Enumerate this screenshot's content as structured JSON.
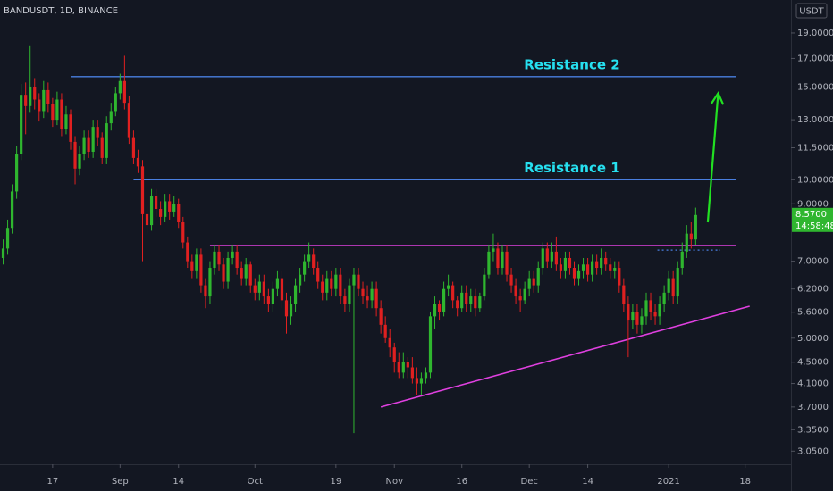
{
  "chart_data": {
    "type": "candlestick",
    "title": "BANDUSDT, 1D, BINANCE",
    "currency": "USDT",
    "countdown": "14:58:48",
    "last_price": {
      "value": 8.57,
      "label": "8.5700"
    },
    "log_scale": true,
    "grid": false,
    "up_color": "#2fb62f",
    "down_color": "#e02020",
    "xlim": [
      -11.7,
      164.2
    ],
    "ylim": [
      2.88,
      21.95
    ],
    "xticks": [
      {
        "value": 0,
        "label": "17"
      },
      {
        "value": 15,
        "label": "Sep"
      },
      {
        "value": 28,
        "label": "14"
      },
      {
        "value": 45,
        "label": "Oct"
      },
      {
        "value": 63,
        "label": "19"
      },
      {
        "value": 76,
        "label": "Nov"
      },
      {
        "value": 91,
        "label": "16"
      },
      {
        "value": 106,
        "label": "Dec"
      },
      {
        "value": 119,
        "label": "14"
      },
      {
        "value": 137,
        "label": "2021"
      },
      {
        "value": 154,
        "label": "18"
      }
    ],
    "yticks": [
      {
        "value": 19,
        "label": "19.0000"
      },
      {
        "value": 17,
        "label": "17.0000"
      },
      {
        "value": 15,
        "label": "15.0000"
      },
      {
        "value": 13,
        "label": "13.0000"
      },
      {
        "value": 11.5,
        "label": "11.5000"
      },
      {
        "value": 10,
        "label": "10.0000"
      },
      {
        "value": 9,
        "label": "9.0000"
      },
      {
        "value": 7,
        "label": "7.0000"
      },
      {
        "value": 6.2,
        "label": "6.2000"
      },
      {
        "value": 5.6,
        "label": "5.6000"
      },
      {
        "value": 5,
        "label": "5.0000"
      },
      {
        "value": 4.5,
        "label": "4.5000"
      },
      {
        "value": 4.1,
        "label": "4.1000"
      },
      {
        "value": 3.7,
        "label": "3.7000"
      },
      {
        "value": 3.35,
        "label": "3.3500"
      },
      {
        "value": 3.05,
        "label": "3.0500"
      }
    ],
    "x": [
      -11,
      -10,
      -9,
      -8,
      -7,
      -6,
      -5,
      -4,
      -3,
      -2,
      -1,
      0,
      1,
      2,
      3,
      4,
      5,
      6,
      7,
      8,
      9,
      10,
      11,
      12,
      13,
      14,
      15,
      16,
      17,
      18,
      19,
      20,
      21,
      22,
      23,
      24,
      25,
      26,
      27,
      28,
      29,
      30,
      31,
      32,
      33,
      34,
      35,
      36,
      37,
      38,
      39,
      40,
      41,
      42,
      43,
      44,
      45,
      46,
      47,
      48,
      49,
      50,
      51,
      52,
      53,
      54,
      55,
      56,
      57,
      58,
      59,
      60,
      61,
      62,
      63,
      64,
      65,
      66,
      67,
      68,
      69,
      70,
      71,
      72,
      73,
      74,
      75,
      76,
      77,
      78,
      79,
      80,
      81,
      82,
      83,
      84,
      85,
      86,
      87,
      88,
      89,
      90,
      91,
      92,
      93,
      94,
      95,
      96,
      97,
      98,
      99,
      100,
      101,
      102,
      103,
      104,
      105,
      106,
      107,
      108,
      109,
      110,
      111,
      112,
      113,
      114,
      115,
      116,
      117,
      118,
      119,
      120,
      121,
      122,
      123,
      124,
      125,
      126,
      127,
      128,
      129,
      130,
      131,
      132,
      133,
      134,
      135,
      136,
      137,
      138,
      139,
      140,
      141,
      142,
      143
    ],
    "open": [
      7.1,
      7.4,
      8.1,
      9.5,
      11.2,
      14.5,
      13.8,
      15.0,
      14.2,
      13.5,
      14.8,
      13.9,
      13.0,
      14.2,
      12.5,
      13.3,
      11.8,
      10.5,
      11.2,
      12.0,
      11.3,
      12.6,
      12.0,
      11.0,
      12.8,
      13.5,
      14.6,
      15.4,
      14.0,
      12.0,
      11.0,
      10.6,
      8.6,
      8.2,
      9.3,
      8.8,
      8.5,
      9.1,
      8.7,
      9.0,
      8.3,
      7.6,
      7.0,
      6.7,
      7.2,
      6.3,
      6.0,
      6.8,
      7.3,
      6.9,
      6.4,
      7.1,
      7.3,
      6.8,
      6.5,
      6.9,
      6.3,
      6.1,
      6.4,
      6.0,
      5.8,
      6.2,
      6.5,
      5.9,
      5.5,
      5.8,
      6.3,
      6.6,
      7.0,
      7.2,
      6.8,
      6.4,
      6.1,
      6.5,
      6.2,
      6.6,
      6.0,
      5.8,
      6.3,
      6.6,
      6.2,
      6.0,
      5.9,
      6.2,
      5.7,
      5.3,
      5.0,
      4.8,
      4.5,
      4.3,
      4.5,
      4.4,
      4.2,
      4.1,
      4.2,
      4.3,
      5.5,
      5.8,
      5.6,
      6.2,
      6.3,
      5.9,
      5.7,
      6.1,
      5.8,
      6.0,
      5.7,
      6.0,
      6.6,
      7.3,
      7.4,
      6.8,
      7.3,
      6.6,
      6.3,
      6.0,
      5.9,
      6.2,
      6.5,
      6.3,
      6.8,
      7.4,
      7.0,
      7.3,
      6.9,
      6.7,
      7.1,
      6.8,
      6.5,
      6.7,
      6.9,
      6.6,
      7.0,
      6.8,
      7.1,
      6.9,
      6.7,
      6.8,
      6.3,
      5.8,
      5.4,
      5.6,
      5.3,
      5.5,
      5.9,
      5.6,
      5.5,
      5.8,
      6.1,
      6.5,
      6.0,
      6.8,
      7.3,
      7.9,
      7.7
    ],
    "high": [
      7.7,
      8.4,
      9.8,
      11.6,
      15.2,
      15.3,
      18.0,
      15.6,
      14.6,
      15.4,
      15.3,
      14.3,
      14.7,
      14.6,
      13.8,
      13.6,
      12.1,
      11.6,
      12.4,
      12.4,
      13.0,
      13.0,
      12.3,
      13.2,
      14.0,
      15.0,
      15.9,
      17.2,
      14.4,
      12.4,
      11.4,
      10.9,
      8.9,
      9.6,
      9.6,
      9.1,
      9.4,
      9.4,
      9.3,
      9.2,
      8.5,
      7.8,
      7.2,
      7.4,
      7.4,
      6.5,
      7.0,
      7.5,
      7.5,
      7.1,
      7.3,
      7.5,
      7.5,
      7.0,
      7.1,
      7.0,
      6.5,
      6.6,
      6.6,
      6.2,
      6.4,
      6.7,
      6.7,
      6.1,
      6.0,
      6.5,
      6.8,
      7.2,
      7.6,
      7.4,
      7.0,
      6.6,
      6.7,
      6.7,
      6.8,
      6.8,
      6.2,
      6.5,
      6.8,
      6.8,
      6.4,
      6.3,
      6.4,
      6.4,
      5.9,
      5.5,
      5.2,
      4.9,
      4.7,
      4.7,
      4.6,
      4.6,
      4.4,
      4.3,
      4.4,
      5.6,
      6.0,
      5.9,
      6.4,
      6.6,
      6.4,
      6.0,
      6.3,
      6.3,
      6.2,
      6.2,
      6.1,
      6.8,
      7.5,
      7.9,
      7.6,
      7.5,
      7.5,
      6.8,
      6.5,
      6.2,
      6.4,
      6.7,
      6.7,
      7.0,
      7.6,
      7.6,
      7.6,
      7.8,
      7.1,
      7.3,
      7.3,
      7.0,
      6.9,
      7.1,
      7.1,
      7.2,
      7.2,
      7.4,
      7.3,
      7.1,
      7.0,
      7.0,
      6.5,
      6.0,
      5.8,
      5.8,
      5.7,
      6.1,
      6.1,
      5.8,
      6.0,
      6.3,
      6.7,
      6.7,
      7.0,
      7.6,
      8.2,
      8.3,
      8.85
    ],
    "low": [
      6.9,
      7.2,
      7.9,
      9.2,
      10.9,
      12.2,
      13.4,
      13.6,
      12.9,
      13.1,
      13.4,
      12.6,
      12.7,
      12.1,
      12.2,
      11.4,
      9.8,
      10.2,
      10.9,
      11.0,
      11.0,
      11.6,
      10.7,
      10.7,
      12.4,
      13.2,
      14.2,
      13.6,
      11.7,
      10.7,
      10.3,
      7.0,
      7.9,
      8.0,
      8.5,
      8.2,
      8.3,
      8.4,
      8.5,
      8.1,
      7.4,
      6.8,
      6.5,
      6.5,
      6.1,
      5.7,
      5.8,
      6.6,
      6.7,
      6.2,
      6.2,
      6.9,
      6.6,
      6.3,
      6.3,
      6.1,
      5.9,
      5.9,
      5.8,
      5.6,
      5.6,
      6.0,
      5.7,
      5.1,
      5.3,
      5.6,
      6.1,
      6.4,
      6.8,
      6.6,
      6.2,
      5.9,
      5.9,
      6.0,
      6.0,
      5.8,
      5.6,
      5.6,
      3.3,
      6.0,
      5.8,
      5.7,
      5.7,
      5.5,
      5.1,
      4.9,
      4.6,
      4.3,
      4.2,
      4.2,
      4.2,
      4.1,
      3.9,
      3.9,
      4.1,
      4.2,
      5.2,
      5.4,
      5.5,
      6.0,
      5.7,
      5.5,
      5.6,
      5.6,
      5.6,
      5.5,
      5.6,
      5.9,
      6.5,
      7.0,
      6.6,
      6.6,
      6.4,
      6.1,
      5.8,
      5.6,
      5.8,
      6.0,
      6.1,
      6.1,
      6.6,
      6.8,
      6.8,
      6.7,
      6.5,
      6.5,
      6.6,
      6.3,
      6.3,
      6.5,
      6.4,
      6.4,
      6.6,
      6.6,
      6.7,
      6.5,
      6.5,
      6.1,
      5.6,
      4.6,
      5.2,
      5.1,
      5.1,
      5.3,
      5.4,
      5.3,
      5.3,
      5.6,
      5.9,
      5.8,
      5.8,
      6.6,
      7.1,
      7.4,
      7.5
    ],
    "close": [
      7.4,
      8.1,
      9.5,
      11.2,
      14.5,
      13.8,
      15.0,
      14.2,
      13.5,
      14.8,
      13.9,
      13.0,
      14.2,
      12.5,
      13.3,
      11.8,
      10.5,
      11.2,
      12.0,
      11.3,
      12.6,
      12.0,
      11.0,
      12.8,
      13.5,
      14.6,
      15.4,
      14.0,
      12.0,
      11.0,
      10.6,
      8.6,
      8.2,
      9.3,
      8.8,
      8.5,
      9.1,
      8.7,
      9.0,
      8.3,
      7.6,
      7.0,
      6.7,
      7.2,
      6.3,
      6.0,
      6.8,
      7.3,
      6.9,
      6.4,
      7.1,
      7.3,
      6.8,
      6.5,
      6.9,
      6.3,
      6.1,
      6.4,
      6.0,
      5.8,
      6.2,
      6.5,
      5.9,
      5.5,
      5.8,
      6.3,
      6.6,
      7.0,
      7.2,
      6.8,
      6.4,
      6.1,
      6.5,
      6.2,
      6.6,
      6.0,
      5.8,
      6.3,
      6.6,
      6.2,
      6.0,
      5.9,
      6.2,
      5.7,
      5.3,
      5.0,
      4.8,
      4.5,
      4.3,
      4.5,
      4.4,
      4.2,
      4.1,
      4.2,
      4.3,
      5.5,
      5.8,
      5.6,
      6.2,
      6.3,
      5.9,
      5.7,
      6.1,
      5.8,
      6.0,
      5.7,
      6.0,
      6.6,
      7.3,
      7.4,
      6.8,
      7.3,
      6.6,
      6.3,
      6.0,
      5.9,
      6.2,
      6.5,
      6.3,
      6.8,
      7.4,
      7.0,
      7.3,
      6.9,
      6.7,
      7.1,
      6.8,
      6.5,
      6.7,
      6.9,
      6.6,
      7.0,
      6.8,
      7.1,
      6.9,
      6.7,
      6.8,
      6.3,
      5.8,
      5.4,
      5.6,
      5.3,
      5.5,
      5.9,
      5.6,
      5.5,
      5.8,
      6.1,
      6.5,
      6.0,
      6.8,
      7.3,
      7.9,
      7.7,
      8.57
    ],
    "levels": [
      {
        "label": "Resistance 2",
        "value": 15.7,
        "from": 4,
        "to": 152,
        "color": "#4a7fe0"
      },
      {
        "label": "Resistance 1",
        "value": 10.0,
        "from": 18,
        "to": 152,
        "color": "#4a7fe0"
      }
    ],
    "lines": [
      {
        "start": [
          35,
          7.5
        ],
        "end": [
          152,
          7.5
        ],
        "color": "#e040e0"
      },
      {
        "start": [
          73,
          3.7
        ],
        "end": [
          155,
          5.75
        ],
        "color": "#e040e0"
      },
      {
        "start": [
          134.5,
          7.35
        ],
        "end": [
          148.5,
          7.35
        ],
        "color": "#4a7fe0",
        "dash": true
      }
    ],
    "arrow": {
      "start": [
        145.7,
        8.3
      ],
      "end": [
        148,
        14.6
      ],
      "color": "#22e022"
    }
  }
}
